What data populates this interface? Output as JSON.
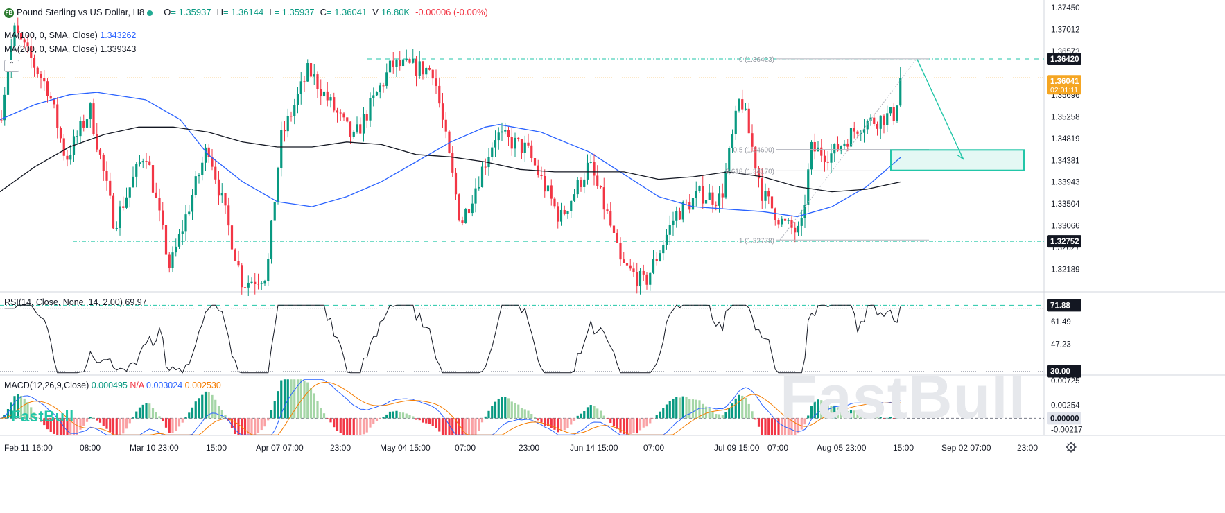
{
  "header": {
    "badge": "FB",
    "title": "Pound Sterling vs US Dollar, H8",
    "open_label": "O",
    "open": "= 1.35937",
    "high_label": "H",
    "high": "= 1.36144",
    "low_label": "L",
    "low": "= 1.35937",
    "close_label": "C",
    "close": "= 1.36041",
    "volume_label": "V",
    "volume": "16.80K",
    "change": "-0.00006 (-0.00%)"
  },
  "legends": {
    "ma100_label": "MA(100, 0, SMA, Close)",
    "ma100_value": "1.343262",
    "ma200_label": "MA(200, 0, SMA, Close)",
    "ma200_value": "1.339343",
    "rsi_label": "RSI(14, Close, None, 14, 2.00)",
    "rsi_value": "69.97",
    "macd_label": "MACD(12,26,9,Close)",
    "macd_hist": "0.000495",
    "macd_na": "N/A",
    "macd_line": "0.003024",
    "macd_signal": "0.002530"
  },
  "watermark": {
    "small": "FastBull",
    "big": "FastBull"
  },
  "chart_data": [
    {
      "type": "candlestick",
      "pane": "price",
      "symbol": "Pound Sterling vs US Dollar",
      "timeframe": "H8",
      "ylim": [
        1.3175,
        1.3755
      ],
      "yticks": [
        "1.37450",
        "1.37012",
        "1.36573",
        "1.35696",
        "1.35258",
        "1.34819",
        "1.34381",
        "1.33943",
        "1.33504",
        "1.33066",
        "1.32627",
        "1.32189"
      ],
      "price_labels": [
        {
          "value": "1.36420",
          "kind": "level"
        },
        {
          "value": "1.36041",
          "kind": "last",
          "sub": "02:01:11"
        },
        {
          "value": "1.32752",
          "kind": "level"
        }
      ],
      "xlabels": [
        "Feb 11 16:00",
        "08:00",
        "Mar 10 23:00",
        "15:00",
        "Apr 07 07:00",
        "23:00",
        "May 04 15:00",
        "07:00",
        "23:00",
        "Jun 14 15:00",
        "07:00",
        "Jul 09 15:00",
        "07:00",
        "Aug 05 23:00",
        "15:00",
        "Sep 02 07:00",
        "23:00"
      ],
      "waypoints": [
        [
          0,
          1.352
        ],
        [
          20,
          1.37
        ],
        [
          70,
          1.358
        ],
        [
          95,
          1.344
        ],
        [
          130,
          1.354
        ],
        [
          165,
          1.331
        ],
        [
          210,
          1.346
        ],
        [
          245,
          1.322
        ],
        [
          300,
          1.347
        ],
        [
          350,
          1.319
        ],
        [
          385,
          1.321
        ],
        [
          405,
          1.348
        ],
        [
          445,
          1.362
        ],
        [
          510,
          1.348
        ],
        [
          565,
          1.363
        ],
        [
          625,
          1.362
        ],
        [
          665,
          1.331
        ],
        [
          715,
          1.349
        ],
        [
          760,
          1.346
        ],
        [
          808,
          1.332
        ],
        [
          850,
          1.343
        ],
        [
          878,
          1.332
        ],
        [
          895,
          1.323
        ],
        [
          930,
          1.319
        ],
        [
          975,
          1.333
        ],
        [
          1010,
          1.337
        ],
        [
          1040,
          1.336
        ],
        [
          1068,
          1.357
        ],
        [
          1100,
          1.337
        ],
        [
          1130,
          1.331
        ],
        [
          1155,
          1.329
        ],
        [
          1170,
          1.346
        ],
        [
          1200,
          1.345
        ],
        [
          1240,
          1.351
        ],
        [
          1290,
          1.353
        ],
        [
          1300,
          1.3604
        ]
      ],
      "series": [
        {
          "name": "MA(100, 0, SMA, Close)",
          "value": "1.343262",
          "color": "#2962ff",
          "points": [
            [
              0,
              1.352
            ],
            [
              50,
              1.355
            ],
            [
              100,
              1.357
            ],
            [
              140,
              1.3575
            ],
            [
              210,
              1.356
            ],
            [
              260,
              1.352
            ],
            [
              300,
              1.345
            ],
            [
              350,
              1.3395
            ],
            [
              400,
              1.3355
            ],
            [
              450,
              1.3345
            ],
            [
              500,
              1.3365
            ],
            [
              550,
              1.3395
            ],
            [
              600,
              1.3435
            ],
            [
              650,
              1.3475
            ],
            [
              700,
              1.3505
            ],
            [
              720,
              1.351
            ],
            [
              780,
              1.3495
            ],
            [
              850,
              1.3455
            ],
            [
              900,
              1.341
            ],
            [
              950,
              1.3365
            ],
            [
              1000,
              1.3345
            ],
            [
              1050,
              1.334
            ],
            [
              1100,
              1.3335
            ],
            [
              1150,
              1.3325
            ],
            [
              1200,
              1.3345
            ],
            [
              1250,
              1.3385
            ],
            [
              1300,
              1.3445
            ]
          ]
        },
        {
          "name": "MA(200, 0, SMA, Close)",
          "value": "1.339343",
          "color": "#131722",
          "points": [
            [
              0,
              1.3375
            ],
            [
              50,
              1.3425
            ],
            [
              100,
              1.3465
            ],
            [
              150,
              1.349
            ],
            [
              200,
              1.3505
            ],
            [
              250,
              1.3505
            ],
            [
              300,
              1.3495
            ],
            [
              350,
              1.3475
            ],
            [
              400,
              1.3465
            ],
            [
              450,
              1.3465
            ],
            [
              500,
              1.3475
            ],
            [
              550,
              1.347
            ],
            [
              600,
              1.345
            ],
            [
              650,
              1.3445
            ],
            [
              700,
              1.3435
            ],
            [
              750,
              1.342
            ],
            [
              800,
              1.3415
            ],
            [
              850,
              1.3415
            ],
            [
              900,
              1.3415
            ],
            [
              950,
              1.34
            ],
            [
              1000,
              1.3405
            ],
            [
              1050,
              1.3415
            ],
            [
              1100,
              1.3405
            ],
            [
              1150,
              1.3385
            ],
            [
              1200,
              1.3375
            ],
            [
              1250,
              1.338
            ],
            [
              1300,
              1.3395
            ]
          ]
        }
      ],
      "annotations": [
        {
          "text": "0 (1.36423)",
          "kind": "fib"
        },
        {
          "text": "0.5 (1.34600)",
          "kind": "fib"
        },
        {
          "text": "0.618 (1.34170)",
          "kind": "fib"
        },
        {
          "text": "1 (1.32778)",
          "kind": "fib"
        }
      ]
    },
    {
      "type": "line",
      "pane": "rsi",
      "name": "RSI(14, Close, None, 14, 2.00)",
      "value": "69.97",
      "ylim": [
        28,
        80
      ],
      "yticks": [
        "61.49",
        "47.23"
      ],
      "price_labels": [
        {
          "value": "71.88",
          "kind": "level"
        },
        {
          "value": "30.00",
          "kind": "level"
        }
      ],
      "color": "#131722"
    },
    {
      "type": "macd",
      "pane": "macd",
      "name": "MACD(12,26,9,Close)",
      "ylim": [
        -0.0033,
        0.0082
      ],
      "yticks": [
        "0.00725",
        "0.00254",
        "-0.00217"
      ],
      "price_labels": [
        {
          "value": "0.00000",
          "kind": "zero"
        }
      ],
      "series": [
        {
          "name": "MACD",
          "value": "0.003024",
          "color": "#2962ff"
        },
        {
          "name": "Signal",
          "value": "0.002530",
          "color": "#f57c00"
        },
        {
          "name": "Histogram",
          "value": "0.000495",
          "color": "#089981"
        }
      ]
    }
  ]
}
